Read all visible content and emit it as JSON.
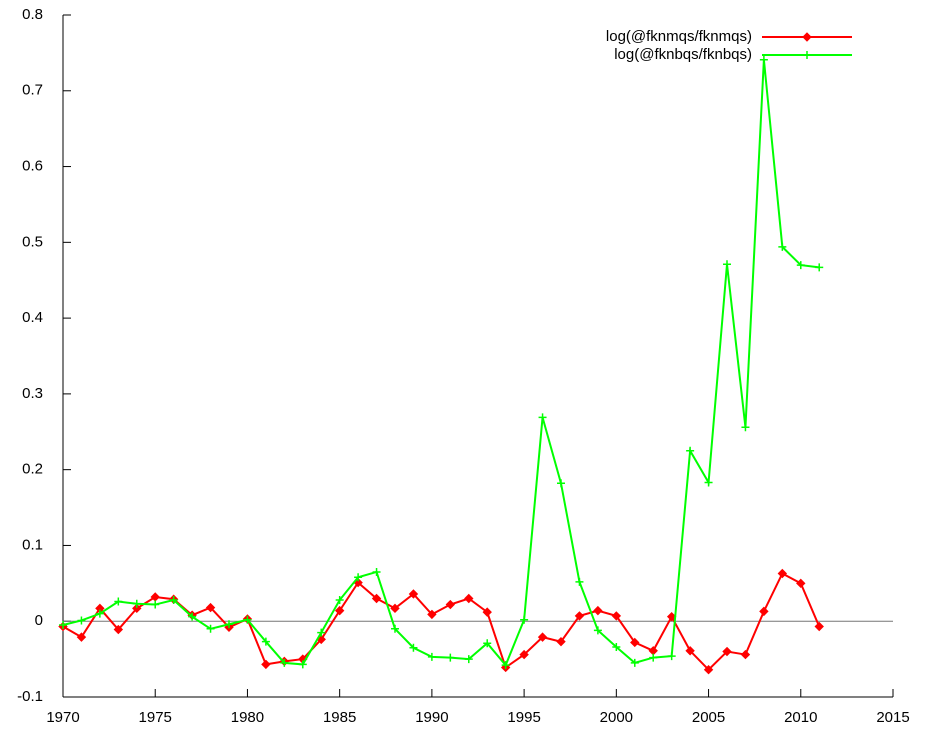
{
  "chart_data": {
    "type": "line",
    "x": [
      1970,
      1971,
      1972,
      1973,
      1974,
      1975,
      1976,
      1977,
      1978,
      1979,
      1980,
      1981,
      1982,
      1983,
      1984,
      1985,
      1986,
      1987,
      1988,
      1989,
      1990,
      1991,
      1992,
      1993,
      1994,
      1995,
      1996,
      1997,
      1998,
      1999,
      2000,
      2001,
      2002,
      2003,
      2004,
      2005,
      2006,
      2007,
      2008,
      2009,
      2010,
      2011
    ],
    "series": [
      {
        "name": "log(@fknmqs/fknmqs)",
        "color": "#ff0000",
        "marker": "diamond",
        "values": [
          -0.007,
          -0.021,
          0.017,
          -0.011,
          0.017,
          0.032,
          0.029,
          0.008,
          0.018,
          -0.008,
          0.003,
          -0.057,
          -0.053,
          -0.05,
          -0.024,
          0.014,
          0.051,
          0.03,
          0.017,
          0.036,
          0.009,
          0.022,
          0.03,
          0.012,
          -0.061,
          -0.044,
          -0.021,
          -0.027,
          0.007,
          0.014,
          0.007,
          -0.028,
          -0.039,
          0.006,
          -0.039,
          -0.064,
          -0.04,
          -0.044,
          0.013,
          0.063,
          0.05,
          -0.007
        ]
      },
      {
        "name": "log(@fknbqs/fknbqs)",
        "color": "#00ff00",
        "marker": "plus",
        "values": [
          -0.005,
          0.001,
          0.01,
          0.026,
          0.023,
          0.022,
          0.028,
          0.006,
          -0.01,
          -0.004,
          0.002,
          -0.027,
          -0.055,
          -0.057,
          -0.015,
          0.028,
          0.058,
          0.065,
          -0.01,
          -0.035,
          -0.047,
          -0.048,
          -0.05,
          -0.029,
          -0.058,
          0.002,
          0.269,
          0.182,
          0.052,
          -0.012,
          -0.034,
          -0.055,
          -0.048,
          -0.046,
          0.225,
          0.183,
          0.471,
          0.256,
          0.741,
          0.494,
          0.47,
          0.467
        ]
      }
    ],
    "xlim": [
      1970,
      2015
    ],
    "xticks": [
      1970,
      1975,
      1980,
      1985,
      1990,
      1995,
      2000,
      2005,
      2010,
      2015
    ],
    "ylim": [
      -0.1,
      0.8
    ],
    "yticks": [
      -0.1,
      0,
      0.1,
      0.2,
      0.3,
      0.4,
      0.5,
      0.6,
      0.7,
      0.8
    ],
    "zero_line": true,
    "grid": false,
    "legend": "top-right"
  }
}
